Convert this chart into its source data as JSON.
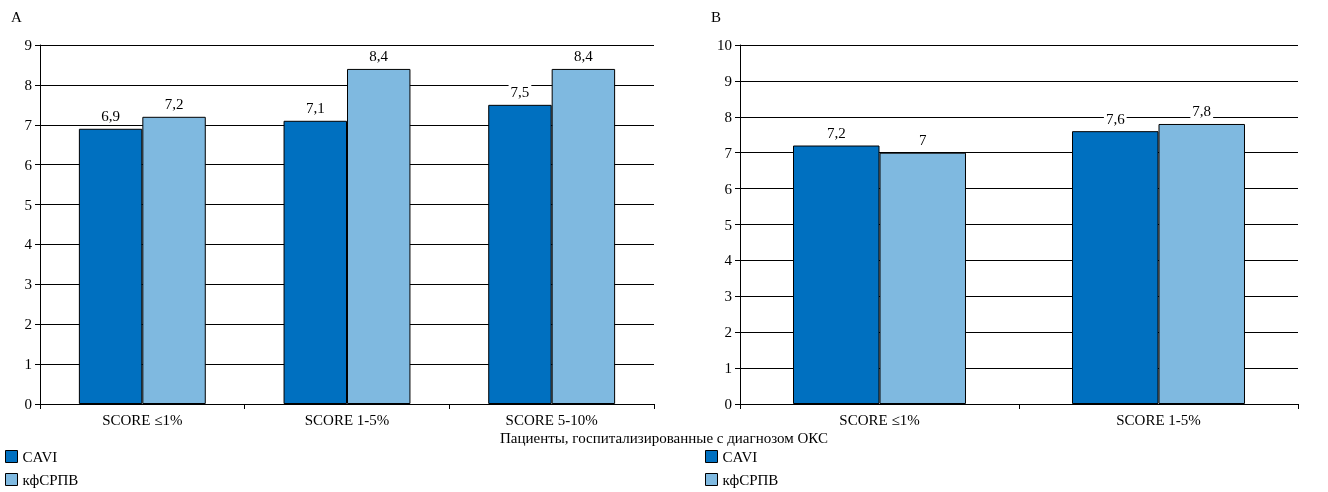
{
  "chart_data": [
    {
      "type": "bar",
      "title": "A",
      "xlabel": "Пациенты, госпитализированные с диагнозом ОКС",
      "categories": [
        "SCORE ≤1%",
        "SCORE 1-5%",
        "SCORE 5-10%"
      ],
      "series": [
        {
          "name": "CAVI",
          "color": "#0070c0",
          "values": [
            6.9,
            7.1,
            7.5
          ],
          "value_labels": [
            "6,9",
            "7,1",
            "7,5"
          ]
        },
        {
          "name": "кфСРПВ",
          "color": "#7fb9e0",
          "values": [
            7.2,
            8.4,
            8.4
          ],
          "value_labels": [
            "7,2",
            "8,4",
            "8,4"
          ]
        }
      ],
      "ylim": [
        0,
        9
      ],
      "yticks": [
        0,
        1,
        2,
        3,
        4,
        5,
        6,
        7,
        8,
        9
      ],
      "grid": "y",
      "legend": "bottom left"
    },
    {
      "type": "bar",
      "title": "B",
      "categories": [
        "SCORE ≤1%",
        "SCORE 1-5%"
      ],
      "series": [
        {
          "name": "CAVI",
          "color": "#0070c0",
          "values": [
            7.2,
            7.6
          ],
          "value_labels": [
            "7,2",
            "7,6"
          ]
        },
        {
          "name": "кфСРПВ",
          "color": "#7fb9e0",
          "values": [
            7,
            7.8
          ],
          "value_labels": [
            "7",
            "7,8"
          ]
        }
      ],
      "ylim": [
        0,
        10
      ],
      "yticks": [
        0,
        1,
        2,
        3,
        4,
        5,
        6,
        7,
        8,
        9,
        10
      ],
      "grid": "y",
      "legend": "bottom left"
    }
  ]
}
